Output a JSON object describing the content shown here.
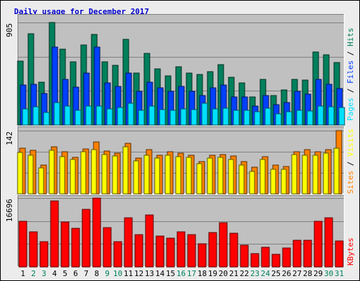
{
  "title": "Daily usage for December 2017",
  "colors": {
    "outer_bg": "#ececec",
    "panel_bg": "#c0c0c0",
    "title": "#0000cc",
    "hits": "#00805c",
    "files": "#0040ff",
    "pages": "#00e0ff",
    "visits": "#ffff00",
    "sites": "#ff8000",
    "kbytes": "#ff0000",
    "weekday": "#000000",
    "weekend": "#00805c"
  },
  "legend": {
    "top": {
      "pages": "Pages",
      "files": "Files",
      "hits": "Hits",
      "sep": " / "
    },
    "middle": {
      "sites": "Sites",
      "visits": "Visits",
      "sep": " / "
    },
    "bottom": {
      "kbytes": "KBytes"
    }
  },
  "chart_data": [
    {
      "type": "bar",
      "title": "Daily usage for December 2017",
      "panel": "hits-files-pages",
      "ylabel_max": "905",
      "ylim": [
        0,
        905
      ],
      "categories": [
        "1",
        "2",
        "3",
        "4",
        "5",
        "6",
        "7",
        "8",
        "9",
        "10",
        "11",
        "12",
        "13",
        "14",
        "15",
        "16",
        "17",
        "18",
        "19",
        "20",
        "21",
        "22",
        "23",
        "24",
        "25",
        "26",
        "27",
        "28",
        "29",
        "30",
        "31"
      ],
      "series": [
        {
          "name": "Hits",
          "values": [
            562,
            805,
            380,
            905,
            670,
            560,
            705,
            800,
            555,
            525,
            758,
            460,
            630,
            495,
            435,
            515,
            460,
            445,
            470,
            530,
            420,
            370,
            250,
            405,
            260,
            310,
            405,
            395,
            645,
            620,
            550
          ]
        },
        {
          "name": "Files",
          "values": [
            355,
            360,
            280,
            690,
            400,
            335,
            460,
            690,
            370,
            340,
            460,
            300,
            380,
            330,
            300,
            340,
            300,
            260,
            330,
            355,
            250,
            250,
            170,
            260,
            180,
            200,
            300,
            270,
            400,
            360,
            320
          ]
        },
        {
          "name": "Pages",
          "values": [
            145,
            160,
            110,
            200,
            165,
            130,
            165,
            165,
            140,
            155,
            195,
            130,
            170,
            135,
            130,
            140,
            135,
            195,
            145,
            150,
            130,
            130,
            115,
            150,
            100,
            115,
            130,
            125,
            170,
            160,
            155
          ]
        }
      ]
    },
    {
      "type": "bar",
      "panel": "sites-visits",
      "ylabel_max": "142",
      "ylim": [
        0,
        142
      ],
      "categories": [
        "1",
        "2",
        "3",
        "4",
        "5",
        "6",
        "7",
        "8",
        "9",
        "10",
        "11",
        "12",
        "13",
        "14",
        "15",
        "16",
        "17",
        "18",
        "19",
        "20",
        "21",
        "22",
        "23",
        "24",
        "25",
        "26",
        "27",
        "28",
        "29",
        "30",
        "31"
      ],
      "series": [
        {
          "name": "Sites",
          "values": [
            102,
            98,
            65,
            105,
            95,
            82,
            101,
            116,
            97,
            92,
            114,
            80,
            99,
            87,
            94,
            91,
            86,
            73,
            86,
            88,
            85,
            73,
            60,
            83,
            65,
            61,
            94,
            99,
            95,
            99,
            142
          ]
        },
        {
          "name": "Visits",
          "values": [
            93,
            86,
            59,
            98,
            84,
            78,
            94,
            100,
            88,
            85,
            106,
            74,
            87,
            80,
            87,
            83,
            82,
            68,
            80,
            82,
            78,
            64,
            51,
            77,
            55,
            55,
            89,
            86,
            86,
            91,
            102
          ]
        }
      ]
    },
    {
      "type": "bar",
      "panel": "kbytes",
      "ylabel_max": "16696",
      "ylim": [
        0,
        16696
      ],
      "categories": [
        "1",
        "2",
        "3",
        "4",
        "5",
        "6",
        "7",
        "8",
        "9",
        "10",
        "11",
        "12",
        "13",
        "14",
        "15",
        "16",
        "17",
        "18",
        "19",
        "20",
        "21",
        "22",
        "23",
        "24",
        "25",
        "26",
        "27",
        "28",
        "29",
        "30",
        "31"
      ],
      "series": [
        {
          "name": "KBytes",
          "values": [
            11000,
            8500,
            6100,
            16000,
            10900,
            9400,
            14000,
            16696,
            9600,
            6100,
            11900,
            7800,
            12600,
            7500,
            7000,
            8600,
            7800,
            5700,
            8300,
            10800,
            8200,
            5300,
            3200,
            4700,
            3000,
            4600,
            6500,
            6500,
            11000,
            12000,
            6300
          ]
        }
      ]
    }
  ]
}
